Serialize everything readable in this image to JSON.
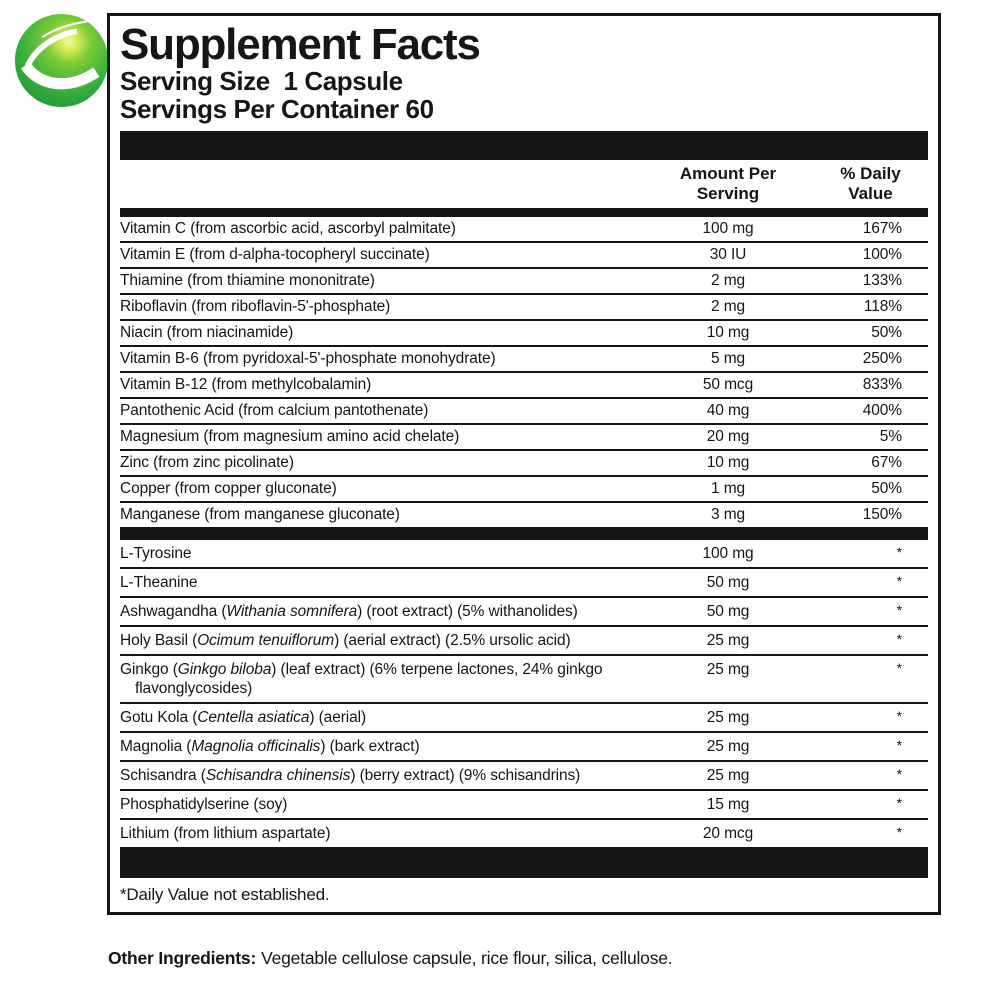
{
  "brand": {
    "logo_name": "green-globe-swoosh-logo",
    "colors": {
      "green_highlight": "#d9ef57",
      "green_mid": "#4cbb3e",
      "green_dark": "#1f9638",
      "swoosh_white": "#ffffff"
    }
  },
  "colors": {
    "bar_black": "#161616",
    "text_black": "#161616",
    "background": "#ffffff"
  },
  "panel": {
    "title": "Supplement Facts",
    "serving_size": "Serving Size  1 Capsule",
    "servings_per_container": "Servings Per Container 60",
    "columns": {
      "amount_line1": "Amount Per",
      "amount_line2": "Serving",
      "dv_line1": "% Daily",
      "dv_line2": "Value"
    },
    "sections": [
      {
        "rows": [
          {
            "name": [
              {
                "t": "Vitamin C (from ascorbic acid, ascorbyl palmitate)"
              }
            ],
            "amount": "100 mg",
            "dv": "167%"
          },
          {
            "name": [
              {
                "t": "Vitamin E (from d-alpha-tocopheryl succinate)"
              }
            ],
            "amount": "30 IU",
            "dv": "100%"
          },
          {
            "name": [
              {
                "t": "Thiamine (from thiamine mononitrate)"
              }
            ],
            "amount": "2 mg",
            "dv": "133%"
          },
          {
            "name": [
              {
                "t": "Riboflavin (from riboflavin-5'-phosphate)"
              }
            ],
            "amount": "2 mg",
            "dv": "118%"
          },
          {
            "name": [
              {
                "t": "Niacin (from niacinamide)"
              }
            ],
            "amount": "10 mg",
            "dv": "50%"
          },
          {
            "name": [
              {
                "t": "Vitamin B-6 (from pyridoxal-5'-phosphate monohydrate)"
              }
            ],
            "amount": "5 mg",
            "dv": "250%"
          },
          {
            "name": [
              {
                "t": "Vitamin B-12 (from methylcobalamin)"
              }
            ],
            "amount": "50 mcg",
            "dv": "833%"
          },
          {
            "name": [
              {
                "t": "Pantothenic Acid (from calcium pantothenate)"
              }
            ],
            "amount": "40 mg",
            "dv": "400%"
          },
          {
            "name": [
              {
                "t": "Magnesium (from magnesium amino acid chelate)"
              }
            ],
            "amount": "20 mg",
            "dv": "5%"
          },
          {
            "name": [
              {
                "t": "Zinc (from zinc picolinate)"
              }
            ],
            "amount": "10 mg",
            "dv": "67%"
          },
          {
            "name": [
              {
                "t": "Copper (from copper gluconate)"
              }
            ],
            "amount": "1 mg",
            "dv": "50%"
          },
          {
            "name": [
              {
                "t": "Manganese (from manganese gluconate)"
              }
            ],
            "amount": "3 mg",
            "dv": "150%"
          }
        ]
      },
      {
        "rows": [
          {
            "name": [
              {
                "t": "L-Tyrosine"
              }
            ],
            "amount": "100 mg",
            "dv": "*"
          },
          {
            "name": [
              {
                "t": "L-Theanine"
              }
            ],
            "amount": "50 mg",
            "dv": "*"
          },
          {
            "name": [
              {
                "t": "Ashwagandha ("
              },
              {
                "t": "Withania somnifera",
                "i": true
              },
              {
                "t": ") (root extract) (5% withanolides)"
              }
            ],
            "amount": "50 mg",
            "dv": "*"
          },
          {
            "name": [
              {
                "t": "Holy Basil ("
              },
              {
                "t": "Ocimum tenuiflorum",
                "i": true
              },
              {
                "t": ") (aerial extract) (2.5% ursolic acid)"
              }
            ],
            "amount": "25 mg",
            "dv": "*"
          },
          {
            "name": [
              {
                "t": "Ginkgo ("
              },
              {
                "t": "Ginkgo biloba",
                "i": true
              },
              {
                "t": ") (leaf extract) (6% terpene lactones, 24% ginkgo"
              },
              {
                "br": true
              },
              {
                "t": "flavonglycosides)"
              }
            ],
            "amount": "25 mg",
            "dv": "*"
          },
          {
            "name": [
              {
                "t": "Gotu Kola ("
              },
              {
                "t": "Centella asiatica",
                "i": true
              },
              {
                "t": ") (aerial)"
              }
            ],
            "amount": "25 mg",
            "dv": "*"
          },
          {
            "name": [
              {
                "t": "Magnolia ("
              },
              {
                "t": "Magnolia officinalis",
                "i": true
              },
              {
                "t": ") (bark extract)"
              }
            ],
            "amount": "25 mg",
            "dv": "*"
          },
          {
            "name": [
              {
                "t": "Schisandra ("
              },
              {
                "t": "Schisandra chinensis",
                "i": true
              },
              {
                "t": ") (berry extract) (9% schisandrins)"
              }
            ],
            "amount": "25 mg",
            "dv": "*"
          },
          {
            "name": [
              {
                "t": "Phosphatidylserine (soy)"
              }
            ],
            "amount": "15 mg",
            "dv": "*"
          },
          {
            "name": [
              {
                "t": "Lithium (from lithium aspartate)"
              }
            ],
            "amount": "20 mcg",
            "dv": "*"
          }
        ]
      }
    ],
    "footnote": "*Daily Value not established."
  },
  "other_ingredients": {
    "label": "Other Ingredients:",
    "text": "Vegetable cellulose capsule, rice flour, silica, cellulose."
  }
}
